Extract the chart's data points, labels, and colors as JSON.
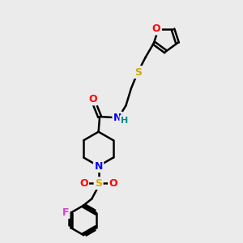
{
  "background_color": "#ebebeb",
  "bond_color": "#000000",
  "bond_width": 1.8,
  "atom_colors": {
    "O": "#ff0000",
    "N": "#0000ff",
    "S_thio": "#ccaa00",
    "S_sulfonyl": "#ddaa00",
    "F": "#cc44cc",
    "H": "#008888",
    "C": "#000000"
  },
  "figsize": [
    3.0,
    3.0
  ],
  "dpi": 100
}
